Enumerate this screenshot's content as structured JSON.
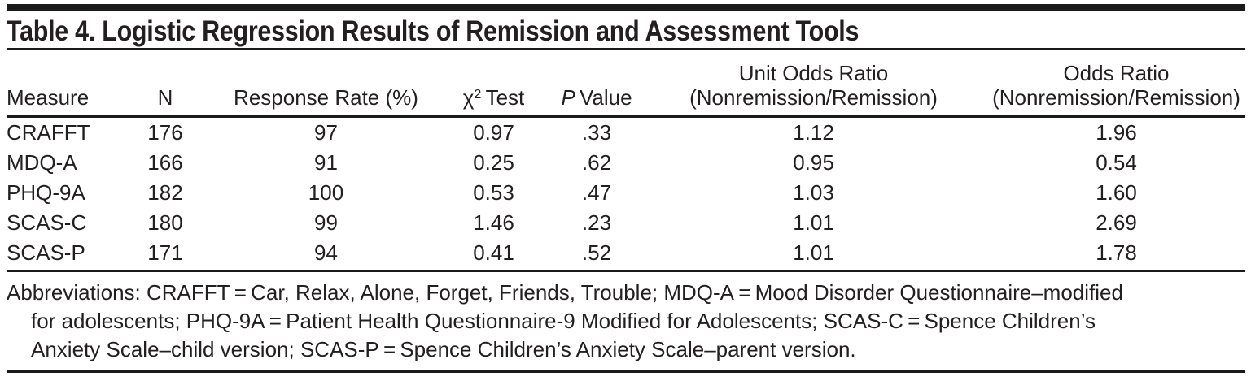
{
  "title": "Table 4. Logistic Regression Results of Remission and Assessment Tools",
  "table": {
    "columns": {
      "measure": "Measure",
      "n": "N",
      "response_rate": "Response Rate (%)",
      "chi2": {
        "symbol": "χ",
        "sup": "2",
        "rest": " Test"
      },
      "p_value": {
        "italic": "P",
        "rest": " Value"
      },
      "unit_or": {
        "line1": "Unit Odds Ratio",
        "line2": "(Nonremission/Remission)"
      },
      "or": {
        "line1": "Odds Ratio",
        "line2": "(Nonremission/Remission)"
      }
    },
    "rows": [
      {
        "measure": "CRAFFT",
        "n": "176",
        "response_rate": "97",
        "chi2": "0.97",
        "p": ".33",
        "unit_or": "1.12",
        "or": "1.96"
      },
      {
        "measure": "MDQ-A",
        "n": "166",
        "response_rate": "91",
        "chi2": "0.25",
        "p": ".62",
        "unit_or": "0.95",
        "or": "0.54"
      },
      {
        "measure": "PHQ-9A",
        "n": "182",
        "response_rate": "100",
        "chi2": "0.53",
        "p": ".47",
        "unit_or": "1.03",
        "or": "1.60"
      },
      {
        "measure": "SCAS-C",
        "n": "180",
        "response_rate": "99",
        "chi2": "1.46",
        "p": ".23",
        "unit_or": "1.01",
        "or": "2.69"
      },
      {
        "measure": "SCAS-P",
        "n": "171",
        "response_rate": "94",
        "chi2": "0.41",
        "p": ".52",
        "unit_or": "1.01",
        "or": "1.78"
      }
    ]
  },
  "footnote": {
    "lines": [
      "Abbreviations: CRAFFT = Car, Relax, Alone, Forget, Friends, Trouble; MDQ-A = Mood Disorder Questionnaire–modified",
      "for adolescents; PHQ-9A = Patient Health Questionnaire-9 Modified for Adolescents; SCAS-C = Spence Children’s",
      "Anxiety Scale–child version; SCAS-P = Spence Children’s Anxiety Scale–parent version."
    ]
  },
  "colors": {
    "text": "#231f20",
    "rule": "#1a1a1a",
    "background": "#ffffff"
  }
}
